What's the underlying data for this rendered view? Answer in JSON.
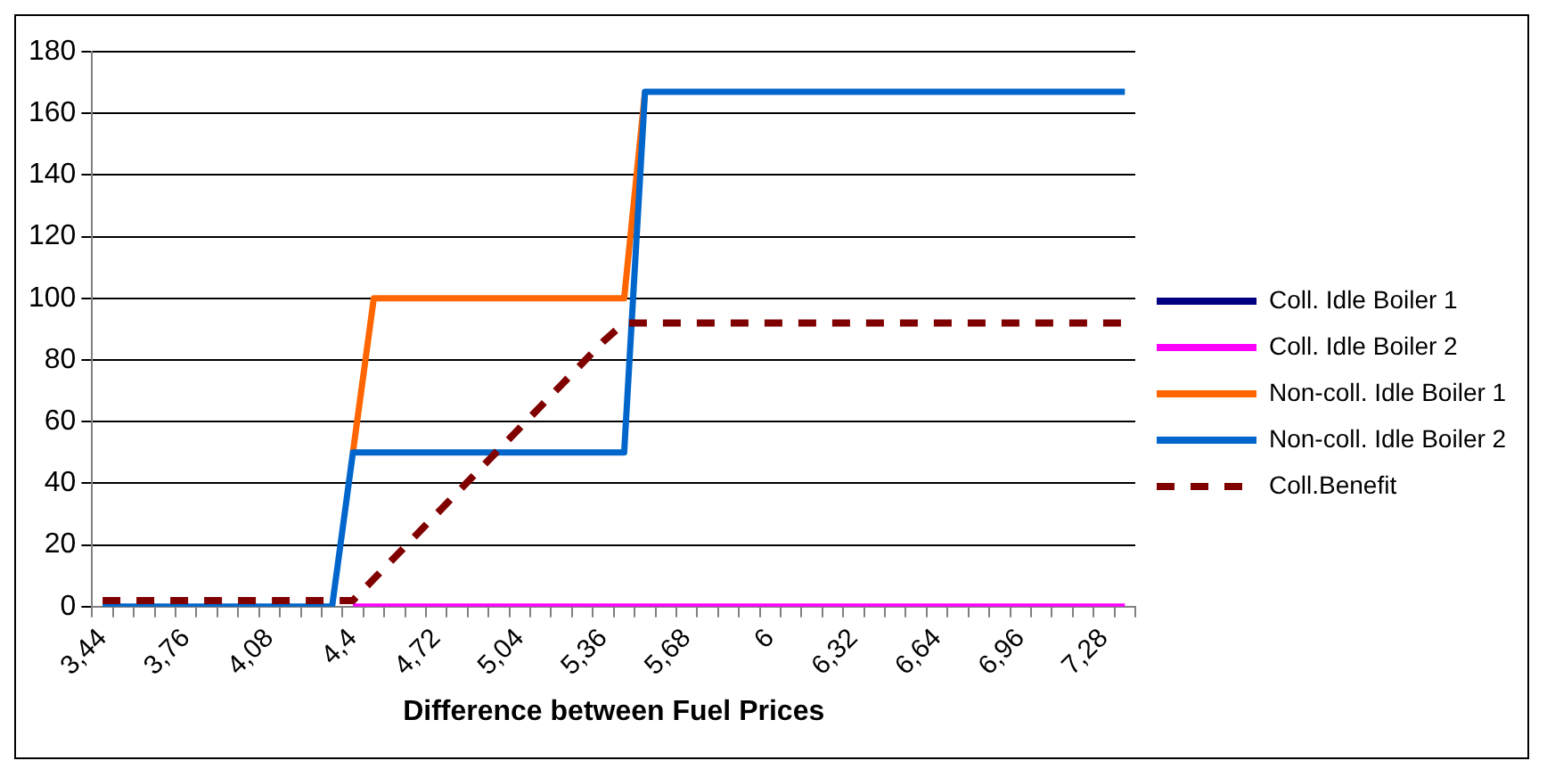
{
  "chart_data": {
    "type": "line",
    "xlabel": "Difference between Fuel Prices",
    "categories": [
      "3,44",
      null,
      null,
      null,
      "3,76",
      null,
      null,
      null,
      "4,08",
      null,
      null,
      null,
      "4,4",
      null,
      null,
      null,
      "4,72",
      null,
      null,
      null,
      "5,04",
      null,
      null,
      null,
      "5,36",
      null,
      null,
      null,
      "5,68",
      null,
      null,
      null,
      "6",
      null,
      null,
      null,
      "6,32",
      null,
      null,
      null,
      "6,64",
      null,
      null,
      null,
      "6,96",
      null,
      null,
      null,
      "7,28",
      null
    ],
    "series": [
      {
        "name": "Coll. Idle Boiler 1",
        "color": "#000080",
        "line_style": "solid",
        "values": [
          null,
          null,
          null,
          null,
          null,
          null,
          null,
          null,
          null,
          null,
          null,
          null,
          null,
          null,
          null,
          null,
          null,
          null,
          null,
          null,
          null,
          null,
          null,
          null,
          null,
          null,
          null,
          null,
          null,
          null,
          null,
          null,
          null,
          null,
          null,
          null,
          null,
          null,
          null,
          null,
          null,
          null,
          null,
          null,
          null,
          null,
          null,
          null,
          null,
          null
        ]
      },
      {
        "name": "Coll. Idle Boiler 2",
        "color": "#ff00ff",
        "line_style": "solid",
        "values": [
          null,
          null,
          null,
          null,
          null,
          null,
          null,
          null,
          null,
          null,
          null,
          null,
          0,
          0,
          0,
          0,
          0,
          0,
          0,
          0,
          0,
          0,
          0,
          0,
          0,
          0,
          0,
          0,
          0,
          0,
          0,
          0,
          0,
          0,
          0,
          0,
          0,
          0,
          0,
          0,
          0,
          0,
          0,
          0,
          0,
          0,
          0,
          0,
          0,
          0
        ]
      },
      {
        "name": "Non-coll. Idle Boiler 1",
        "color": "#ff6600",
        "line_style": "solid",
        "values": [
          null,
          null,
          null,
          null,
          null,
          null,
          null,
          null,
          null,
          null,
          null,
          null,
          50,
          100,
          100,
          100,
          100,
          100,
          100,
          100,
          100,
          100,
          100,
          100,
          100,
          100,
          167,
          null,
          null,
          null,
          null,
          null,
          null,
          null,
          null,
          null,
          null,
          null,
          null,
          null,
          null,
          null,
          null,
          null,
          null,
          null,
          null,
          null,
          null,
          null
        ]
      },
      {
        "name": "Non-coll. Idle Boiler 2",
        "color": "#0066cc",
        "line_style": "solid",
        "values": [
          0,
          0,
          0,
          0,
          0,
          0,
          0,
          0,
          0,
          0,
          0,
          0,
          50,
          50,
          50,
          50,
          50,
          50,
          50,
          50,
          50,
          50,
          50,
          50,
          50,
          50,
          167,
          167,
          167,
          167,
          167,
          167,
          167,
          167,
          167,
          167,
          167,
          167,
          167,
          167,
          167,
          167,
          167,
          167,
          167,
          167,
          167,
          167,
          167,
          167
        ]
      },
      {
        "name": "Coll.Benefit",
        "color": "#800000",
        "line_style": "dashed",
        "values": [
          2,
          2,
          2,
          2,
          2,
          2,
          2,
          2,
          2,
          2,
          2,
          2,
          2,
          9,
          16,
          23,
          30,
          37,
          44,
          51,
          58,
          65,
          72,
          79,
          86,
          92,
          92,
          92,
          92,
          92,
          92,
          92,
          92,
          92,
          92,
          92,
          92,
          92,
          92,
          92,
          92,
          92,
          92,
          92,
          92,
          92,
          92,
          92,
          92,
          92
        ]
      }
    ],
    "ylim": [
      0,
      180
    ],
    "yticks": [
      0,
      20,
      40,
      60,
      80,
      100,
      120,
      140,
      160,
      180
    ],
    "grid": "y",
    "legend": "right",
    "marker": "none"
  }
}
